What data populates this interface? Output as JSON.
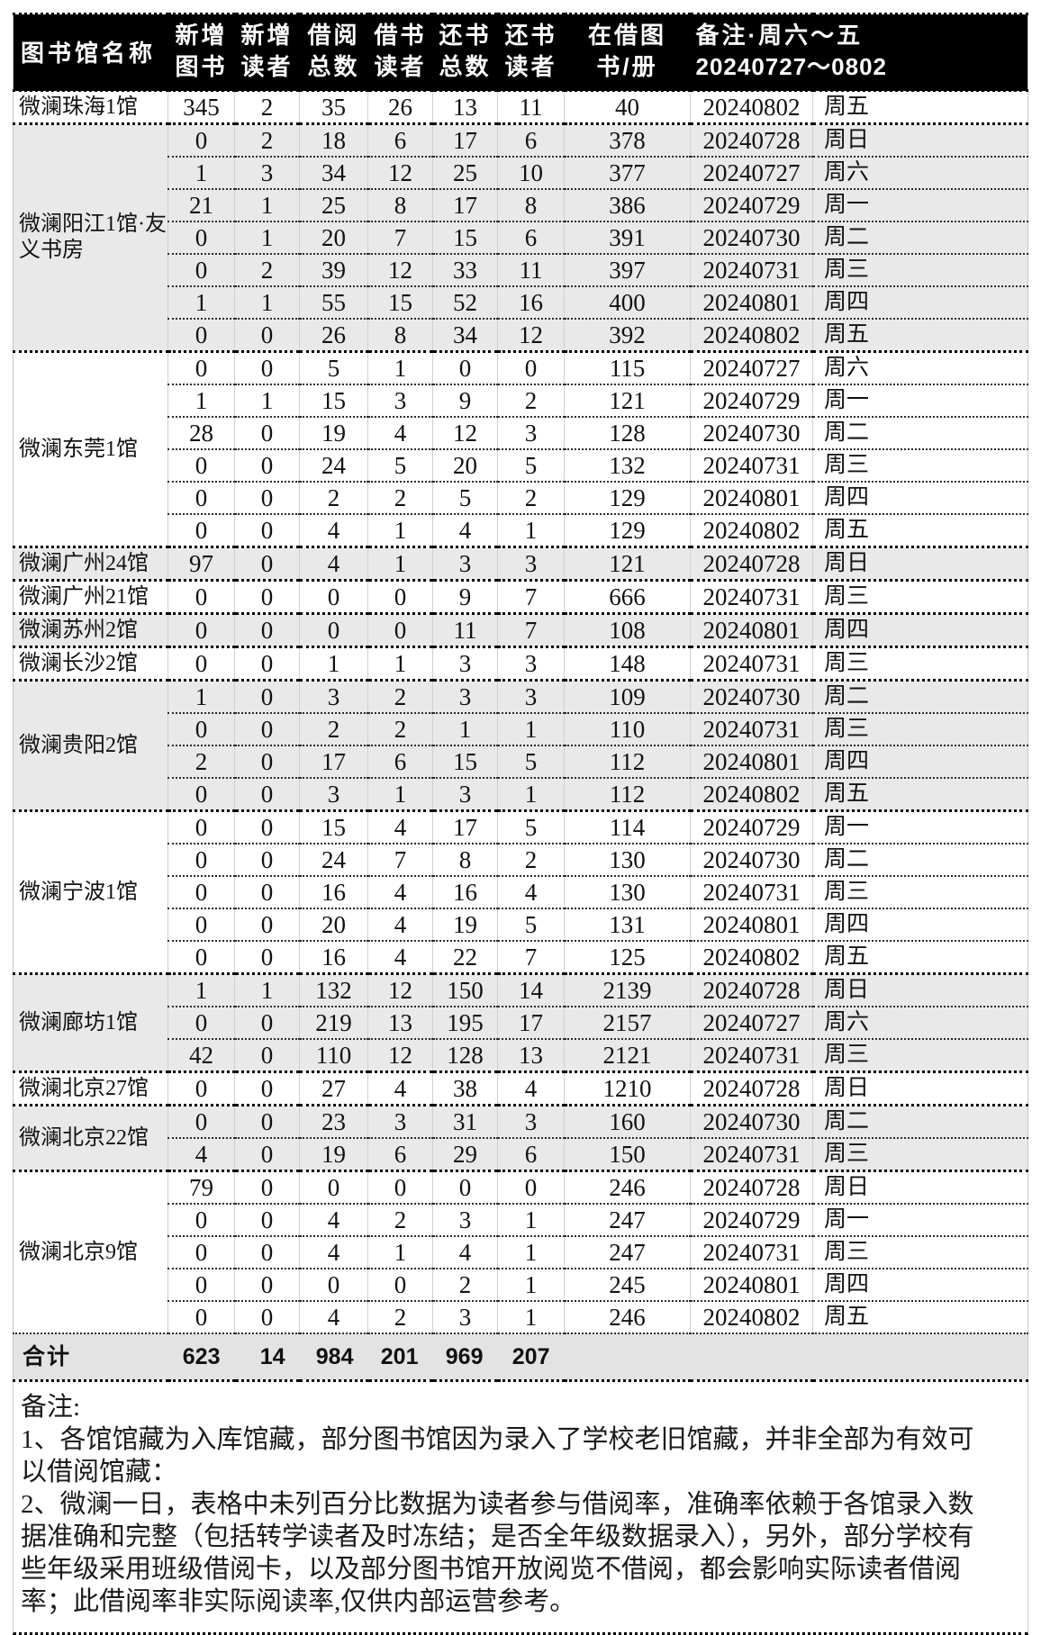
{
  "table": {
    "header": {
      "name_col": "图书馆名称",
      "cols": [
        {
          "l1": "新增",
          "l2": "图书"
        },
        {
          "l1": "新增",
          "l2": "读者"
        },
        {
          "l1": "借阅",
          "l2": "总数"
        },
        {
          "l1": "借书",
          "l2": "读者"
        },
        {
          "l1": "还书",
          "l2": "总数"
        },
        {
          "l1": "还书",
          "l2": "读者"
        },
        {
          "l1": "在借图",
          "l2": "书/册"
        }
      ],
      "note_col": {
        "l1": "备注·周六～五",
        "l2": "20240727～0802"
      }
    },
    "column_keys": [
      "new-books",
      "new-readers",
      "borrow-total",
      "borrow-readers",
      "return-total",
      "return-readers",
      "on-loan",
      "date",
      "weekday"
    ],
    "groups": [
      {
        "name": "微澜珠海1馆",
        "rows": [
          [
            "345",
            "2",
            "35",
            "26",
            "13",
            "11",
            "40",
            "20240802",
            "周五"
          ]
        ]
      },
      {
        "name": "微澜阳江1馆·友义书房",
        "rows": [
          [
            "0",
            "2",
            "18",
            "6",
            "17",
            "6",
            "378",
            "20240728",
            "周日"
          ],
          [
            "1",
            "3",
            "34",
            "12",
            "25",
            "10",
            "377",
            "20240727",
            "周六"
          ],
          [
            "21",
            "1",
            "25",
            "8",
            "17",
            "8",
            "386",
            "20240729",
            "周一"
          ],
          [
            "0",
            "1",
            "20",
            "7",
            "15",
            "6",
            "391",
            "20240730",
            "周二"
          ],
          [
            "0",
            "2",
            "39",
            "12",
            "33",
            "11",
            "397",
            "20240731",
            "周三"
          ],
          [
            "1",
            "1",
            "55",
            "15",
            "52",
            "16",
            "400",
            "20240801",
            "周四"
          ],
          [
            "0",
            "0",
            "26",
            "8",
            "34",
            "12",
            "392",
            "20240802",
            "周五"
          ]
        ]
      },
      {
        "name": "微澜东莞1馆",
        "rows": [
          [
            "0",
            "0",
            "5",
            "1",
            "0",
            "0",
            "115",
            "20240727",
            "周六"
          ],
          [
            "1",
            "1",
            "15",
            "3",
            "9",
            "2",
            "121",
            "20240729",
            "周一"
          ],
          [
            "28",
            "0",
            "19",
            "4",
            "12",
            "3",
            "128",
            "20240730",
            "周二"
          ],
          [
            "0",
            "0",
            "24",
            "5",
            "20",
            "5",
            "132",
            "20240731",
            "周三"
          ],
          [
            "0",
            "0",
            "2",
            "2",
            "5",
            "2",
            "129",
            "20240801",
            "周四"
          ],
          [
            "0",
            "0",
            "4",
            "1",
            "4",
            "1",
            "129",
            "20240802",
            "周五"
          ]
        ]
      },
      {
        "name": "微澜广州24馆",
        "rows": [
          [
            "97",
            "0",
            "4",
            "1",
            "3",
            "3",
            "121",
            "20240728",
            "周日"
          ]
        ]
      },
      {
        "name": "微澜广州21馆",
        "rows": [
          [
            "0",
            "0",
            "0",
            "0",
            "9",
            "7",
            "666",
            "20240731",
            "周三"
          ]
        ]
      },
      {
        "name": "微澜苏州2馆",
        "rows": [
          [
            "0",
            "0",
            "0",
            "0",
            "11",
            "7",
            "108",
            "20240801",
            "周四"
          ]
        ]
      },
      {
        "name": "微澜长沙2馆",
        "rows": [
          [
            "0",
            "0",
            "1",
            "1",
            "3",
            "3",
            "148",
            "20240731",
            "周三"
          ]
        ]
      },
      {
        "name": "微澜贵阳2馆",
        "rows": [
          [
            "1",
            "0",
            "3",
            "2",
            "3",
            "3",
            "109",
            "20240730",
            "周二"
          ],
          [
            "0",
            "0",
            "2",
            "2",
            "1",
            "1",
            "110",
            "20240731",
            "周三"
          ],
          [
            "2",
            "0",
            "17",
            "6",
            "15",
            "5",
            "112",
            "20240801",
            "周四"
          ],
          [
            "0",
            "0",
            "3",
            "1",
            "3",
            "1",
            "112",
            "20240802",
            "周五"
          ]
        ]
      },
      {
        "name": "微澜宁波1馆",
        "rows": [
          [
            "0",
            "0",
            "15",
            "4",
            "17",
            "5",
            "114",
            "20240729",
            "周一"
          ],
          [
            "0",
            "0",
            "24",
            "7",
            "8",
            "2",
            "130",
            "20240730",
            "周二"
          ],
          [
            "0",
            "0",
            "16",
            "4",
            "16",
            "4",
            "130",
            "20240731",
            "周三"
          ],
          [
            "0",
            "0",
            "20",
            "4",
            "19",
            "5",
            "131",
            "20240801",
            "周四"
          ],
          [
            "0",
            "0",
            "16",
            "4",
            "22",
            "7",
            "125",
            "20240802",
            "周五"
          ]
        ]
      },
      {
        "name": "微澜廊坊1馆",
        "rows": [
          [
            "1",
            "1",
            "132",
            "12",
            "150",
            "14",
            "2139",
            "20240728",
            "周日"
          ],
          [
            "0",
            "0",
            "219",
            "13",
            "195",
            "17",
            "2157",
            "20240727",
            "周六"
          ],
          [
            "42",
            "0",
            "110",
            "12",
            "128",
            "13",
            "2121",
            "20240731",
            "周三"
          ]
        ]
      },
      {
        "name": "微澜北京27馆",
        "rows": [
          [
            "0",
            "0",
            "27",
            "4",
            "38",
            "4",
            "1210",
            "20240728",
            "周日"
          ]
        ]
      },
      {
        "name": "微澜北京22馆",
        "rows": [
          [
            "0",
            "0",
            "23",
            "3",
            "31",
            "3",
            "160",
            "20240730",
            "周二"
          ],
          [
            "4",
            "0",
            "19",
            "6",
            "29",
            "6",
            "150",
            "20240731",
            "周三"
          ]
        ]
      },
      {
        "name": "微澜北京9馆",
        "rows": [
          [
            "79",
            "0",
            "0",
            "0",
            "0",
            "0",
            "246",
            "20240728",
            "周日"
          ],
          [
            "0",
            "0",
            "4",
            "2",
            "3",
            "1",
            "247",
            "20240729",
            "周一"
          ],
          [
            "0",
            "0",
            "4",
            "1",
            "4",
            "1",
            "247",
            "20240731",
            "周三"
          ],
          [
            "0",
            "0",
            "0",
            "0",
            "2",
            "1",
            "245",
            "20240801",
            "周四"
          ],
          [
            "0",
            "0",
            "4",
            "2",
            "3",
            "1",
            "246",
            "20240802",
            "周五"
          ]
        ]
      }
    ],
    "total": {
      "label": "合计",
      "values": [
        "623",
        "14",
        "984",
        "201",
        "969",
        "207"
      ]
    }
  },
  "notes": {
    "title": "备注:",
    "item1": "1、各馆馆藏为入库馆藏，部分图书馆因为录入了学校老旧馆藏，并非全部为有效可以借阅馆藏：",
    "item2": "2、微澜一日，表格中未列百分比数据为读者参与借阅率，准确率依赖于各馆录入数据准确和完整（包括转学读者及时冻结；是否全年级数据录入），另外，部分学校有些年级采用班级借阅卡，以及部分图书馆开放阅览不借阅，都会影响实际读者借阅率；此借阅率非实际阅读率,仅供内部运营参考。"
  },
  "colors": {
    "header_bg": "#000000",
    "header_text": "#ffffff",
    "shaded_row": "#e9e9e9",
    "total_row_bg": "#e3e3e3",
    "grid_line": "#cfcfcf",
    "dotted_line": "#000000"
  }
}
